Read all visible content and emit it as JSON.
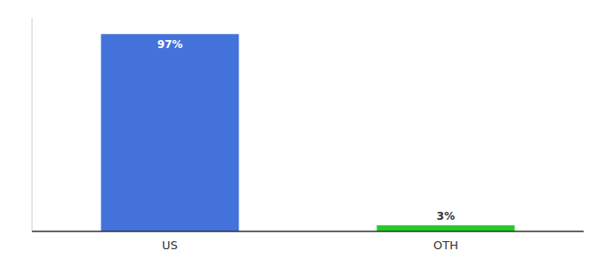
{
  "chart_data": {
    "type": "bar",
    "categories": [
      "US",
      "OTH"
    ],
    "values": [
      97,
      3
    ],
    "value_labels": [
      "97%",
      "3%"
    ],
    "colors": [
      "#4472db",
      "#22cc22"
    ],
    "ylim": [
      0,
      105
    ],
    "data_labels": true,
    "tick_labels": "x",
    "grid": false
  }
}
